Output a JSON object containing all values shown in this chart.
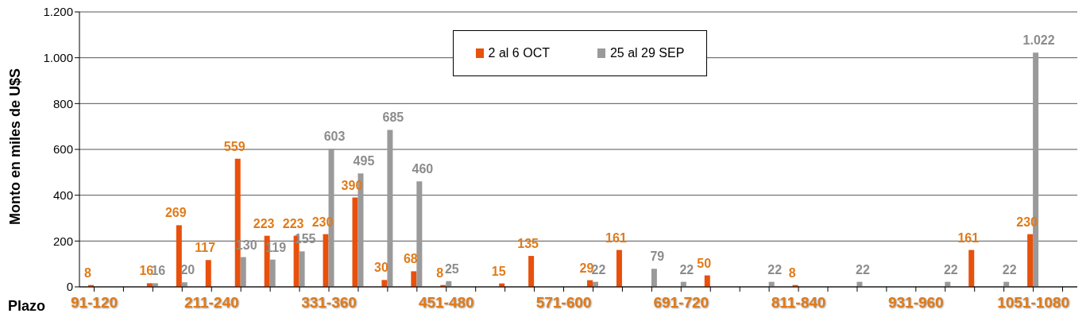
{
  "chart_data": {
    "type": "bar",
    "xlabel": "Plazo",
    "ylabel": "Monto en  miles de U$S",
    "categories": [
      "91-120",
      null,
      null,
      null,
      "211-240",
      null,
      null,
      null,
      "331-360",
      null,
      null,
      null,
      "451-480",
      null,
      null,
      null,
      "571-600",
      null,
      null,
      null,
      "691-720",
      null,
      null,
      null,
      "811-840",
      null,
      null,
      null,
      "931-960",
      null,
      null,
      null,
      "1051-1080",
      null
    ],
    "series": [
      {
        "name": "2 al 6 OCT",
        "color": "#e8500c",
        "values": [
          8,
          null,
          16,
          269,
          117,
          559,
          223,
          223,
          230,
          390,
          30,
          68,
          8,
          null,
          15,
          135,
          null,
          29,
          161,
          null,
          null,
          50,
          null,
          null,
          8,
          null,
          null,
          null,
          null,
          null,
          161,
          null,
          230,
          null
        ],
        "value_labels": [
          "8",
          null,
          "16",
          "269",
          "117",
          "559",
          "223",
          "223",
          "230",
          "390",
          "30",
          "68",
          "8",
          null,
          "15",
          "135",
          null,
          "29",
          "161",
          null,
          null,
          "50",
          null,
          null,
          "8",
          null,
          null,
          null,
          null,
          null,
          "161",
          null,
          "230",
          null
        ]
      },
      {
        "name": "25 al 29 SEP",
        "color": "#9a9a9a",
        "values": [
          null,
          null,
          16,
          20,
          null,
          130,
          119,
          155,
          603,
          495,
          685,
          460,
          25,
          null,
          null,
          null,
          null,
          22,
          null,
          79,
          22,
          null,
          null,
          22,
          null,
          null,
          22,
          null,
          null,
          22,
          null,
          22,
          1022,
          null
        ],
        "value_labels": [
          null,
          null,
          "16",
          "20",
          null,
          "130",
          "119",
          "155",
          "603",
          "495",
          "685",
          "460",
          "25",
          null,
          null,
          null,
          null,
          "22",
          null,
          "79",
          "22",
          null,
          null,
          "22",
          null,
          null,
          "22",
          null,
          null,
          "22",
          null,
          "22",
          "1.022",
          null
        ]
      }
    ],
    "ylim": [
      0,
      1200
    ],
    "yticks": [
      0,
      200,
      400,
      600,
      800,
      {
        "value": 1000,
        "label": "1.000"
      },
      {
        "value": 1200,
        "label": "1.200"
      }
    ],
    "grid": "y",
    "legend": "top right"
  }
}
